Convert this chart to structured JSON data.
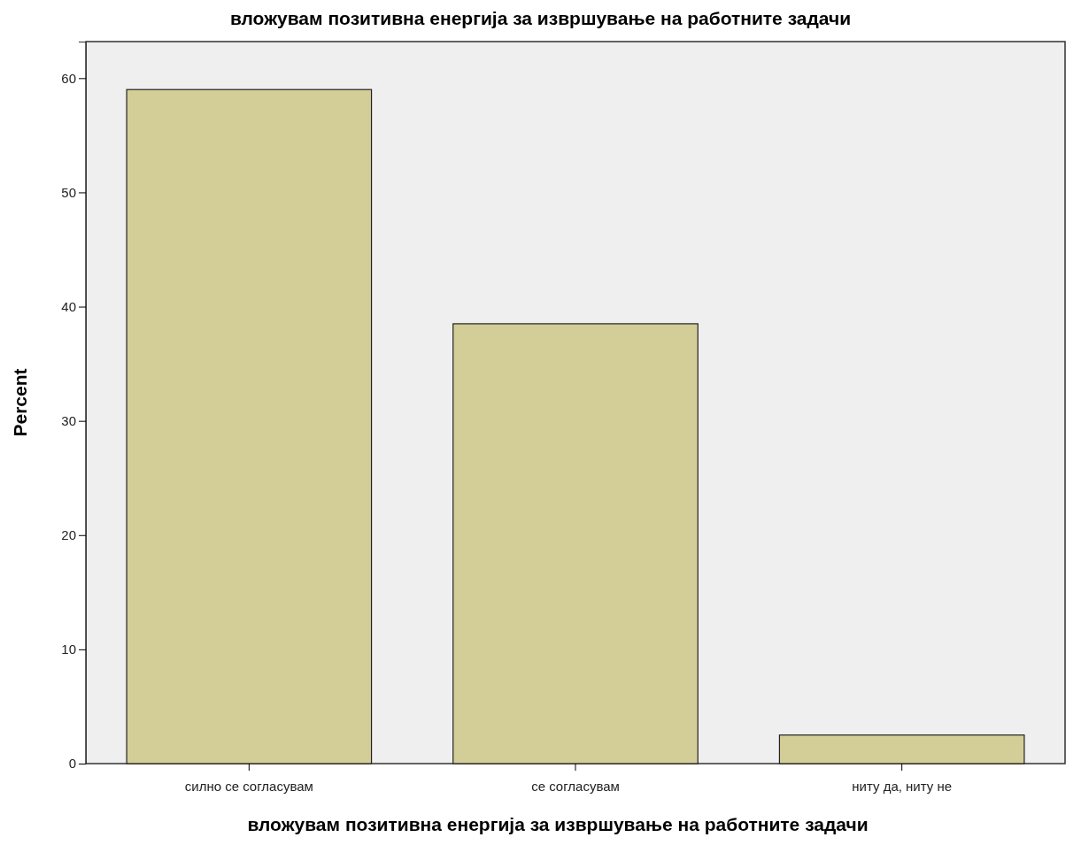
{
  "chart_data": {
    "type": "bar",
    "title": "вложувам позитивна енергија за извршување на работните задачи",
    "xlabel": "вложувам позитивна енергија за извршување на работните задачи",
    "ylabel": "Percent",
    "categories": [
      "силно се согласувам",
      "се согласувам",
      "ниту да, ниту не"
    ],
    "values": [
      59,
      38.5,
      2.5
    ],
    "color": "#d3ce97",
    "ylim": [
      0,
      63.2
    ],
    "yticks": [
      0,
      10,
      20,
      30,
      40,
      50,
      60
    ],
    "grid": false
  }
}
